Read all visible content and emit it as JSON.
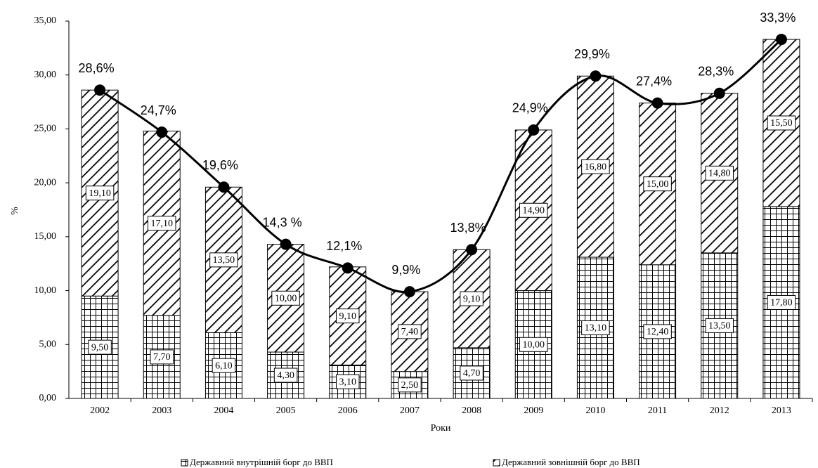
{
  "chart_data": {
    "type": "bar",
    "stacked": true,
    "categories": [
      "2002",
      "2003",
      "2004",
      "2005",
      "2006",
      "2007",
      "2008",
      "2009",
      "2010",
      "2011",
      "2012",
      "2013"
    ],
    "series": [
      {
        "name": "Державний внутрішній борг до ВВП",
        "color": "#000000",
        "values": [
          9.5,
          7.7,
          6.1,
          4.3,
          3.1,
          2.5,
          4.7,
          10.0,
          13.1,
          12.4,
          13.5,
          17.8
        ],
        "value_labels": [
          "9,50",
          "7,70",
          "6,10",
          "4,30",
          "3,10",
          "2,50",
          "4,70",
          "10,00",
          "13,10",
          "12,40",
          "13,50",
          "17,80"
        ]
      },
      {
        "name": "Державний зовнішній борг до ВВП",
        "color": "#000000",
        "values": [
          19.1,
          17.1,
          13.5,
          10.0,
          9.1,
          7.4,
          9.1,
          14.9,
          16.8,
          15.0,
          14.8,
          15.5
        ],
        "value_labels": [
          "19,10",
          "17,10",
          "13,50",
          "10,00",
          "9,10",
          "7,40",
          "9,10",
          "14,90",
          "16,80",
          "15,00",
          "14,80",
          "15,50"
        ]
      }
    ],
    "line": {
      "color": "#000000",
      "values": [
        28.6,
        24.7,
        19.6,
        14.3,
        12.1,
        9.9,
        13.8,
        24.9,
        29.9,
        27.4,
        28.3,
        33.3
      ],
      "value_labels": [
        "28,6%",
        "24,7%",
        "19,6%",
        "14,3  %",
        "12,1%",
        "9,9%",
        "13,8%",
        "24,9%",
        "29,9%",
        "27,4%",
        "28,3%",
        "33,3%"
      ]
    },
    "ylim": [
      0,
      35
    ],
    "yticks": [
      {
        "value": 0,
        "label": "0,00"
      },
      {
        "value": 5,
        "label": "5,00"
      },
      {
        "value": 10,
        "label": "10,00"
      },
      {
        "value": 15,
        "label": "15,00"
      },
      {
        "value": 20,
        "label": "20,00"
      },
      {
        "value": 25,
        "label": "25,00"
      },
      {
        "value": 30,
        "label": "30,00"
      },
      {
        "value": 35,
        "label": "35,00"
      }
    ],
    "y_label": "%",
    "x_label": "Роки"
  }
}
